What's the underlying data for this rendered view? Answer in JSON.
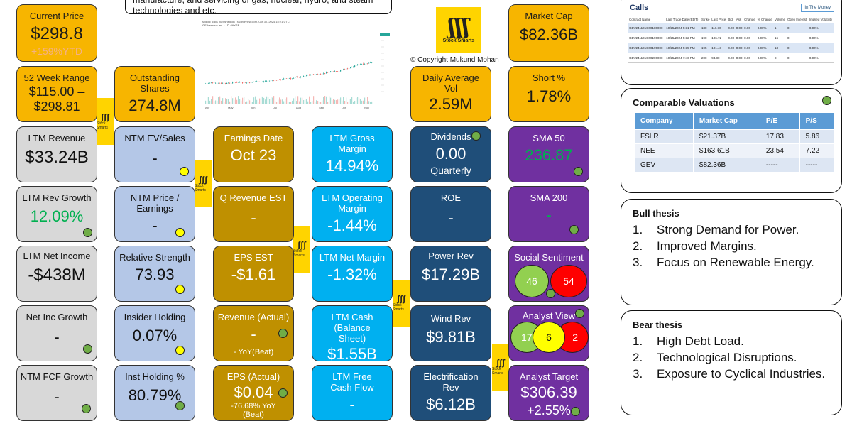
{
  "intro_text": "manufacture, and servicing of gas, nuclear, hydro, and steam technologies and etc.",
  "copyright": "© Copyright Mukund Mohan",
  "logo_text": "Stock Smarts",
  "chart_source": "sydoni_calls published on TradingView.com, Oct 30, 2024 15:21 UTC",
  "chart_symbol": "GE Vernova Inc. · 1D · NYSE",
  "chart_footer": "TradingView",
  "chart_months": [
    "Apr",
    "May",
    "Jun",
    "Jul",
    "Aug",
    "Sep",
    "Oct",
    "Nov"
  ],
  "col1": {
    "current_price_label": "Current Price",
    "current_price_value": "$298.8",
    "current_price_ytd": "+159%YTD",
    "range_label": "52 Week Range",
    "range_value": "$115.00 – $298.81",
    "ltm_rev_label": "LTM Revenue",
    "ltm_rev_value": "$33.24B",
    "rev_growth_label": "LTM Rev Growth",
    "rev_growth_value": "12.09%",
    "net_income_label": "LTM Net Income",
    "net_income_value": "-$438M",
    "net_inc_growth_label": "Net Inc Growth",
    "net_inc_growth_value": "-",
    "fcf_growth_label": "NTM FCF Growth",
    "fcf_growth_value": "-"
  },
  "col2": {
    "outstanding_label": "Outstanding Shares",
    "outstanding_value": "274.8M",
    "ev_sales_label": "NTM EV/Sales",
    "ev_sales_value": "-",
    "pe_label": "NTM Price / Earnings",
    "pe_value": "-",
    "rs_label": "Relative Strength",
    "rs_value": "73.93",
    "insider_label": "Insider Holding",
    "insider_value": "0.07%",
    "inst_label": "Inst Holding %",
    "inst_value": "80.79%"
  },
  "col3": {
    "earn_date_label": "Earnings Date",
    "earn_date_value": "Oct 23",
    "q_rev_label": "Q Revenue EST",
    "q_rev_value": "-",
    "eps_est_label": "EPS EST",
    "eps_est_value": "-$1.61",
    "rev_actual_label": "Revenue (Actual)",
    "rev_actual_value": "-",
    "rev_actual_sub": "- YoY(Beat)",
    "eps_actual_label": "EPS (Actual)",
    "eps_actual_value": "$0.04",
    "eps_actual_sub": "-76.68% YoY (Beat)"
  },
  "col4": {
    "gross_label": "LTM Gross Margin",
    "gross_value": "14.94%",
    "op_label": "LTM Operating Margin",
    "op_value": "-1.44%",
    "net_margin_label": "LTM Net Margin",
    "net_margin_value": "-1.32%",
    "cash_label": "LTM Cash (Balance Sheet)",
    "cash_value": "$1.55B",
    "fcf_label": "LTM Free Cash Flow",
    "fcf_value": "-"
  },
  "col5": {
    "daily_vol_label": "Daily Average Vol",
    "daily_vol_value": "2.59M",
    "div_label": "Dividends",
    "div_value": "0.00",
    "div_freq": "Quarterly",
    "roe_label": "ROE",
    "roe_value": "-",
    "power_label": "Power Rev",
    "power_value": "$17.29B",
    "wind_label": "Wind Rev",
    "wind_value": "$9.81B",
    "elec_label": "Electrification Rev",
    "elec_value": "$6.12B"
  },
  "col6": {
    "mcap_label": "Market Cap",
    "mcap_value": "$82.36B",
    "short_label": "Short %",
    "short_value": "1.78%",
    "sma50_label": "SMA 50",
    "sma50_value": "236.87",
    "sma200_label": "SMA 200",
    "sma200_value": "-",
    "social_label": "Social Sentiment",
    "social_pos": "46",
    "social_neg": "54",
    "analyst_label": "Analyst View",
    "analyst_buy": "17",
    "analyst_hold": "6",
    "analyst_sell": "2",
    "target_label": "Analyst Target",
    "target_value": "$306.39",
    "target_change": "+2.55%"
  },
  "calls": {
    "title": "Calls",
    "badge": "In The Money",
    "headers": [
      "Contract Name",
      "Last Trade Date (EDT)",
      "Strike",
      "Last Price",
      "Bid",
      "Ask",
      "Change",
      "% Change",
      "Volume",
      "Open Interest",
      "Implied Volatility"
    ],
    "rows": [
      [
        "GEV241101C00180000",
        "10/25/2024 5:31 PM",
        "180",
        "116.70",
        "0.00",
        "0.00",
        "0.00",
        "0.00%",
        "1",
        "0",
        "0.00%"
      ],
      [
        "GEV241101C00190000",
        "10/25/2024 5:32 PM",
        "190",
        "106.72",
        "0.00",
        "0.00",
        "0.00",
        "0.00%",
        "16",
        "0",
        "0.00%"
      ],
      [
        "GEV241101C00195000",
        "10/25/2024 5:35 PM",
        "195",
        "101.48",
        "0.00",
        "0.00",
        "0.00",
        "0.00%",
        "13",
        "0",
        "0.00%"
      ],
      [
        "GEV241101C00200000",
        "10/25/2024 7:46 PM",
        "200",
        "94.80",
        "0.00",
        "0.00",
        "0.00",
        "0.00%",
        "8",
        "0",
        "0.00%"
      ]
    ]
  },
  "valuations": {
    "title": "Comparable Valuations",
    "headers": [
      "Company",
      "Market Cap",
      "P/E",
      "P/S"
    ],
    "rows": [
      [
        "FSLR",
        "$21.37B",
        "17.83",
        "5.86"
      ],
      [
        "NEE",
        "$163.61B",
        "23.54",
        "7.22"
      ],
      [
        "GEV",
        "$82.36B",
        "-----",
        "-----"
      ]
    ]
  },
  "bull": {
    "title": "Bull thesis",
    "items": [
      "Strong Demand for Power.",
      "Improved Margins.",
      "Focus on Renewable Energy."
    ]
  },
  "bear": {
    "title": "Bear thesis",
    "items": [
      "High Debt Load.",
      "Technological Disruptions.",
      "Exposure to Cyclical Industries."
    ]
  },
  "colors": {
    "green_text": "#00b050",
    "orange_text": "#f4b183",
    "sma_green": "#00b050"
  }
}
